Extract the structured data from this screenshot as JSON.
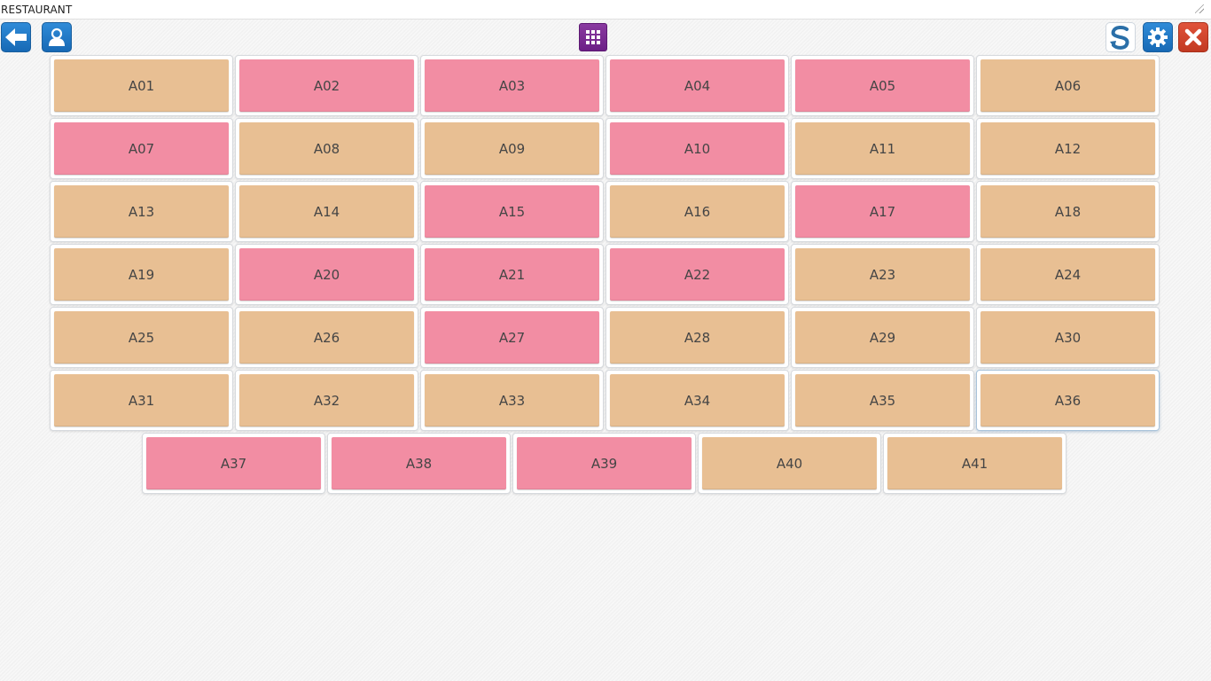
{
  "window": {
    "title": "RESTAURANT"
  },
  "toolbar": {
    "back_icon": "arrow-left-icon",
    "user_icon": "user-icon",
    "grid_icon": "grid-icon",
    "sync_icon": "sync-icon",
    "settings_icon": "gear-icon",
    "close_icon": "close-icon"
  },
  "colors": {
    "free": "#e8bf93",
    "occupied": "#f28da3",
    "accent_blue": "#1f78c8",
    "accent_purple": "#7a2a92",
    "accent_red": "#d04530"
  },
  "tables": [
    {
      "label": "A01",
      "status": "free"
    },
    {
      "label": "A02",
      "status": "occupied"
    },
    {
      "label": "A03",
      "status": "occupied"
    },
    {
      "label": "A04",
      "status": "occupied"
    },
    {
      "label": "A05",
      "status": "occupied"
    },
    {
      "label": "A06",
      "status": "free"
    },
    {
      "label": "A07",
      "status": "occupied"
    },
    {
      "label": "A08",
      "status": "free"
    },
    {
      "label": "A09",
      "status": "free"
    },
    {
      "label": "A10",
      "status": "occupied"
    },
    {
      "label": "A11",
      "status": "free"
    },
    {
      "label": "A12",
      "status": "free"
    },
    {
      "label": "A13",
      "status": "free"
    },
    {
      "label": "A14",
      "status": "free"
    },
    {
      "label": "A15",
      "status": "occupied"
    },
    {
      "label": "A16",
      "status": "free"
    },
    {
      "label": "A17",
      "status": "occupied"
    },
    {
      "label": "A18",
      "status": "free"
    },
    {
      "label": "A19",
      "status": "free"
    },
    {
      "label": "A20",
      "status": "occupied"
    },
    {
      "label": "A21",
      "status": "occupied"
    },
    {
      "label": "A22",
      "status": "occupied"
    },
    {
      "label": "A23",
      "status": "free"
    },
    {
      "label": "A24",
      "status": "free"
    },
    {
      "label": "A25",
      "status": "free"
    },
    {
      "label": "A26",
      "status": "free"
    },
    {
      "label": "A27",
      "status": "occupied"
    },
    {
      "label": "A28",
      "status": "free"
    },
    {
      "label": "A29",
      "status": "free"
    },
    {
      "label": "A30",
      "status": "free"
    },
    {
      "label": "A31",
      "status": "free"
    },
    {
      "label": "A32",
      "status": "free"
    },
    {
      "label": "A33",
      "status": "free"
    },
    {
      "label": "A34",
      "status": "free"
    },
    {
      "label": "A35",
      "status": "free"
    },
    {
      "label": "A36",
      "status": "free"
    },
    {
      "label": "A37",
      "status": "occupied"
    },
    {
      "label": "A38",
      "status": "occupied"
    },
    {
      "label": "A39",
      "status": "occupied"
    },
    {
      "label": "A40",
      "status": "free"
    },
    {
      "label": "A41",
      "status": "free"
    }
  ]
}
